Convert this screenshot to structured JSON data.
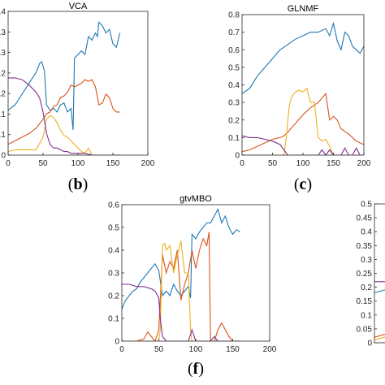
{
  "colors": {
    "blue": "#1f77b4",
    "orange": "#d95319",
    "yellow": "#edb120",
    "purple": "#7e2f8e"
  },
  "chart_data": [
    {
      "type": "line",
      "title": "VCA",
      "label_open": "(",
      "label_letter": "b",
      "label_close": ")",
      "xlim": [
        0,
        200
      ],
      "ylim": [
        0,
        0.4
      ],
      "xticks": [
        "0",
        "50",
        "100",
        "150",
        "200"
      ],
      "yticks": [
        "0",
        ".1",
        ".1",
        ".2",
        ".2",
        ".3",
        ".3",
        ".4"
      ],
      "series": [
        {
          "color": "blue",
          "x": [
            0,
            10,
            20,
            30,
            40,
            45,
            48,
            52,
            55,
            60,
            65,
            70,
            75,
            80,
            85,
            90,
            93,
            95,
            100,
            105,
            110,
            115,
            120,
            125,
            128,
            130,
            135,
            140,
            145,
            150,
            155,
            160
          ],
          "y": [
            0.125,
            0.14,
            0.17,
            0.2,
            0.23,
            0.255,
            0.26,
            0.235,
            0.14,
            0.125,
            0.13,
            0.12,
            0.14,
            0.145,
            0.12,
            0.13,
            0.07,
            0.27,
            0.28,
            0.29,
            0.28,
            0.33,
            0.32,
            0.34,
            0.33,
            0.37,
            0.36,
            0.34,
            0.35,
            0.31,
            0.3,
            0.34
          ]
        },
        {
          "color": "orange",
          "x": [
            0,
            10,
            20,
            30,
            40,
            50,
            55,
            60,
            65,
            70,
            75,
            80,
            85,
            90,
            95,
            100,
            105,
            110,
            115,
            120,
            125,
            130,
            135,
            140,
            145,
            150,
            155,
            160
          ],
          "y": [
            0.03,
            0.04,
            0.05,
            0.06,
            0.075,
            0.1,
            0.115,
            0.12,
            0.135,
            0.14,
            0.16,
            0.165,
            0.175,
            0.195,
            0.19,
            0.195,
            0.2,
            0.21,
            0.205,
            0.21,
            0.19,
            0.14,
            0.145,
            0.17,
            0.16,
            0.13,
            0.12,
            0.12
          ]
        },
        {
          "color": "yellow",
          "x": [
            0,
            10,
            20,
            30,
            40,
            50,
            55,
            60,
            65,
            70,
            75,
            80,
            85,
            90,
            95,
            100,
            105,
            110,
            115,
            120,
            125,
            130,
            140,
            150,
            160
          ],
          "y": [
            0.01,
            0.015,
            0.015,
            0.015,
            0.015,
            0.05,
            0.1,
            0.11,
            0.105,
            0.09,
            0.07,
            0.055,
            0.05,
            0.04,
            0.03,
            0.02,
            0.01,
            0.005,
            0.02,
            0.0,
            0.0,
            0.0,
            0.0,
            0.0,
            0.0
          ]
        },
        {
          "color": "purple",
          "x": [
            0,
            10,
            20,
            30,
            40,
            45,
            50,
            55,
            60,
            65,
            70,
            75,
            80,
            85,
            90,
            100,
            110,
            120,
            130,
            140,
            150,
            160
          ],
          "y": [
            0.215,
            0.215,
            0.21,
            0.195,
            0.175,
            0.16,
            0.12,
            0.06,
            0.03,
            0.02,
            0.02,
            0.015,
            0.01,
            0.01,
            0.005,
            0.005,
            0.005,
            0.0,
            0.0,
            0.0,
            0.0,
            0.0
          ]
        }
      ]
    },
    {
      "type": "line",
      "title": "GLNMF",
      "label_open": "(",
      "label_letter": "c",
      "label_close": ")",
      "xlim": [
        0,
        200
      ],
      "ylim": [
        0,
        0.8
      ],
      "xticks": [
        "0",
        "50",
        "100",
        "150",
        "200"
      ],
      "yticks": [
        "0",
        "0.1",
        "0.2",
        "0.3",
        "0.4",
        "0.5",
        "0.6",
        "0.7",
        "0.8"
      ],
      "series": [
        {
          "color": "blue",
          "x": [
            0,
            10,
            20,
            30,
            40,
            50,
            60,
            70,
            80,
            90,
            100,
            110,
            115,
            120,
            125,
            130,
            135,
            140,
            145,
            150,
            155,
            160
          ],
          "y": [
            0.35,
            0.38,
            0.45,
            0.5,
            0.55,
            0.6,
            0.63,
            0.66,
            0.68,
            0.7,
            0.7,
            0.72,
            0.68,
            0.75,
            0.65,
            0.6,
            0.7,
            0.68,
            0.62,
            0.6,
            0.58,
            0.62
          ]
        },
        {
          "color": "orange",
          "x": [
            0,
            10,
            20,
            30,
            40,
            50,
            55,
            60,
            70,
            80,
            90,
            100,
            110,
            115,
            120,
            125,
            130,
            140,
            150,
            160
          ],
          "y": [
            0.02,
            0.03,
            0.05,
            0.07,
            0.09,
            0.1,
            0.11,
            0.13,
            0.18,
            0.23,
            0.27,
            0.3,
            0.35,
            0.2,
            0.22,
            0.2,
            0.15,
            0.12,
            0.08,
            0.06
          ]
        },
        {
          "color": "yellow",
          "x": [
            0,
            50,
            55,
            58,
            62,
            65,
            70,
            75,
            80,
            85,
            90,
            95,
            100,
            105,
            110,
            115,
            120,
            125,
            130,
            140,
            150,
            160
          ],
          "y": [
            0.0,
            0.0,
            0.0,
            0.1,
            0.28,
            0.33,
            0.36,
            0.37,
            0.36,
            0.38,
            0.3,
            0.3,
            0.1,
            0.08,
            0.09,
            0.05,
            0.0,
            0.0,
            0.0,
            0.0,
            0.0,
            0.0
          ]
        },
        {
          "color": "purple",
          "x": [
            0,
            10,
            20,
            30,
            40,
            50,
            55,
            60,
            70,
            80,
            90,
            100,
            105,
            110,
            115,
            120,
            125,
            130,
            135,
            140,
            145,
            150,
            155,
            160
          ],
          "y": [
            0.11,
            0.1,
            0.1,
            0.09,
            0.08,
            0.06,
            0.03,
            0.0,
            0.0,
            0.0,
            0.0,
            0.0,
            0.03,
            0.0,
            0.03,
            0.0,
            0.0,
            0.0,
            0.04,
            0.0,
            0.0,
            0.04,
            0.0,
            0.0
          ]
        }
      ]
    },
    {
      "type": "line",
      "title": "gtvMBO",
      "label_open": "(",
      "label_letter": "f",
      "label_close": ")",
      "xlim": [
        0,
        200
      ],
      "ylim": [
        0,
        0.6
      ],
      "xticks": [
        "0",
        "50",
        "100",
        "150",
        "200"
      ],
      "yticks": [
        "0",
        "0.1",
        "0.2",
        "0.3",
        "0.4",
        "0.5",
        "0.6"
      ],
      "series": [
        {
          "color": "blue",
          "x": [
            0,
            5,
            10,
            15,
            20,
            25,
            30,
            35,
            40,
            45,
            50,
            55,
            60,
            65,
            70,
            75,
            80,
            85,
            90,
            93,
            95,
            100,
            105,
            110,
            115,
            120,
            125,
            130,
            135,
            140,
            145,
            150,
            155,
            160
          ],
          "y": [
            0.14,
            0.18,
            0.2,
            0.22,
            0.23,
            0.26,
            0.28,
            0.3,
            0.32,
            0.34,
            0.31,
            0.2,
            0.22,
            0.2,
            0.25,
            0.22,
            0.2,
            0.22,
            0.24,
            0.19,
            0.47,
            0.45,
            0.48,
            0.5,
            0.52,
            0.52,
            0.55,
            0.58,
            0.52,
            0.55,
            0.5,
            0.47,
            0.49,
            0.48
          ]
        },
        {
          "color": "orange",
          "x": [
            0,
            20,
            30,
            35,
            40,
            45,
            50,
            55,
            60,
            65,
            70,
            75,
            80,
            85,
            90,
            95,
            100,
            105,
            110,
            115,
            118,
            120,
            125,
            130,
            135,
            140,
            145,
            150,
            160
          ],
          "y": [
            0.0,
            0.0,
            0.01,
            0.04,
            0.02,
            0.0,
            0.05,
            0.38,
            0.3,
            0.35,
            0.32,
            0.4,
            0.18,
            0.25,
            0.3,
            0.4,
            0.32,
            0.4,
            0.45,
            0.42,
            0.48,
            0.0,
            0.0,
            0.05,
            0.08,
            0.05,
            0.02,
            0.0,
            0.0
          ]
        },
        {
          "color": "yellow",
          "x": [
            0,
            40,
            50,
            52,
            55,
            58,
            60,
            65,
            70,
            75,
            80,
            85,
            90,
            93,
            95,
            100,
            110,
            120,
            140,
            160
          ],
          "y": [
            0.0,
            0.0,
            0.0,
            0.05,
            0.42,
            0.43,
            0.4,
            0.42,
            0.3,
            0.38,
            0.44,
            0.3,
            0.3,
            0.05,
            0.0,
            0.0,
            0.0,
            0.0,
            0.0,
            0.0
          ]
        },
        {
          "color": "purple",
          "x": [
            0,
            10,
            20,
            30,
            40,
            45,
            50,
            52,
            55,
            60,
            70,
            80,
            90,
            95,
            100,
            110,
            120,
            125,
            130,
            140,
            150,
            160
          ],
          "y": [
            0.25,
            0.25,
            0.24,
            0.24,
            0.23,
            0.22,
            0.19,
            0.1,
            0.02,
            0.0,
            0.0,
            0.0,
            0.0,
            0.05,
            0.0,
            0.0,
            0.0,
            0.02,
            0.0,
            0.0,
            0.0,
            0.0
          ]
        }
      ]
    },
    {
      "type": "line",
      "title": "",
      "ylim": [
        0,
        0.5
      ],
      "yticks": [
        "0",
        "0.05",
        "0.1",
        "0.15",
        "0.2",
        "0.25",
        "0.3",
        "0.35",
        "0.4",
        "0.45",
        "0.5"
      ],
      "series": [
        {
          "color": "purple",
          "x": [
            0,
            5,
            10
          ],
          "y": [
            0.22,
            0.22,
            0.22
          ]
        },
        {
          "color": "blue",
          "x": [
            0,
            5,
            10
          ],
          "y": [
            0.18,
            0.19,
            0.2
          ]
        },
        {
          "color": "orange",
          "x": [
            0,
            5,
            10
          ],
          "y": [
            0.02,
            0.03,
            0.04
          ]
        },
        {
          "color": "yellow",
          "x": [
            0,
            5,
            10
          ],
          "y": [
            0.01,
            0.02,
            0.02
          ]
        }
      ]
    }
  ]
}
